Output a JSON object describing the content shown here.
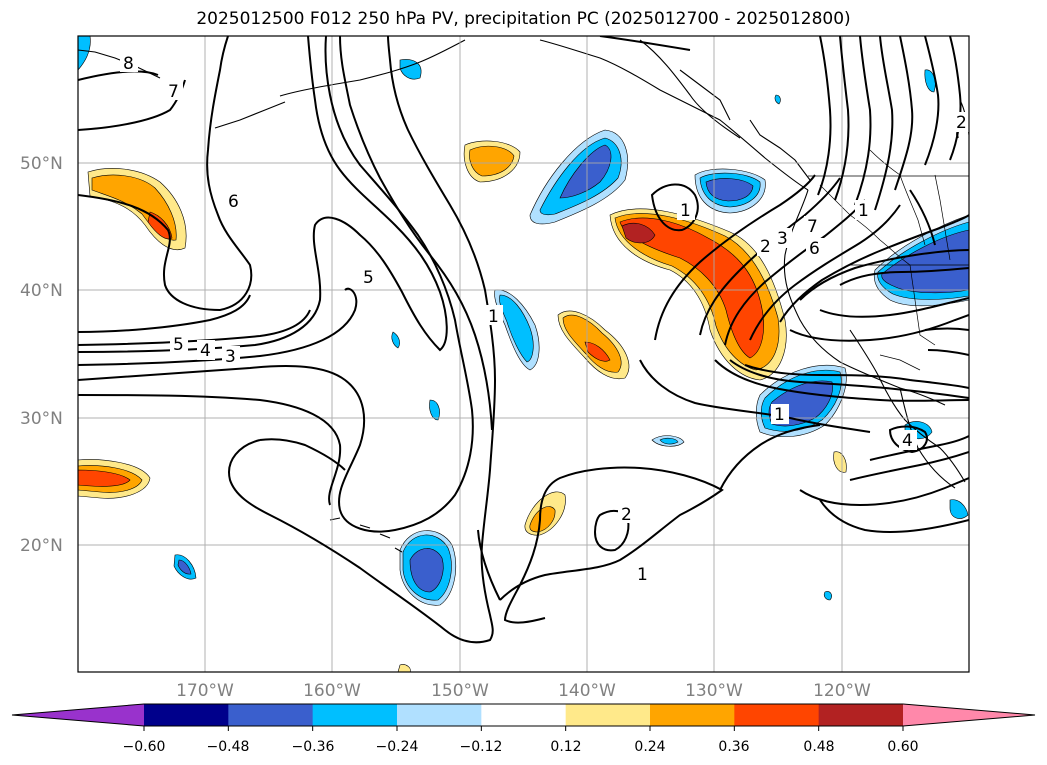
{
  "title": "2025012500 F012 250 hPa PV, precipitation PC (2025012700 - 2025012800)",
  "map": {
    "lon_range": [
      -180,
      -110
    ],
    "lat_range": [
      10,
      60
    ],
    "lat_ticks": [
      "20°N",
      "30°N",
      "40°N",
      "50°N"
    ],
    "lon_ticks": [
      "170°W",
      "160°W",
      "150°W",
      "140°W",
      "130°W",
      "120°W"
    ],
    "gridlines": true,
    "contour_labels": [
      "8",
      "7",
      "6",
      "5",
      "5",
      "4",
      "3",
      "1",
      "1",
      "1",
      "2",
      "3",
      "6",
      "7",
      "1",
      "2",
      "1",
      "4",
      "2"
    ]
  },
  "colorbar": {
    "ticks": [
      "−0.60",
      "−0.48",
      "−0.36",
      "−0.24",
      "−0.12",
      "0.12",
      "0.24",
      "0.36",
      "0.48",
      "0.60"
    ],
    "colors": [
      "#9932cc",
      "#00008b",
      "#3a5fcd",
      "#00bfff",
      "#b0e0ff",
      "#ffffff",
      "#ffe98a",
      "#ffa500",
      "#ff4500",
      "#b22222",
      "#ff88aa"
    ]
  }
}
